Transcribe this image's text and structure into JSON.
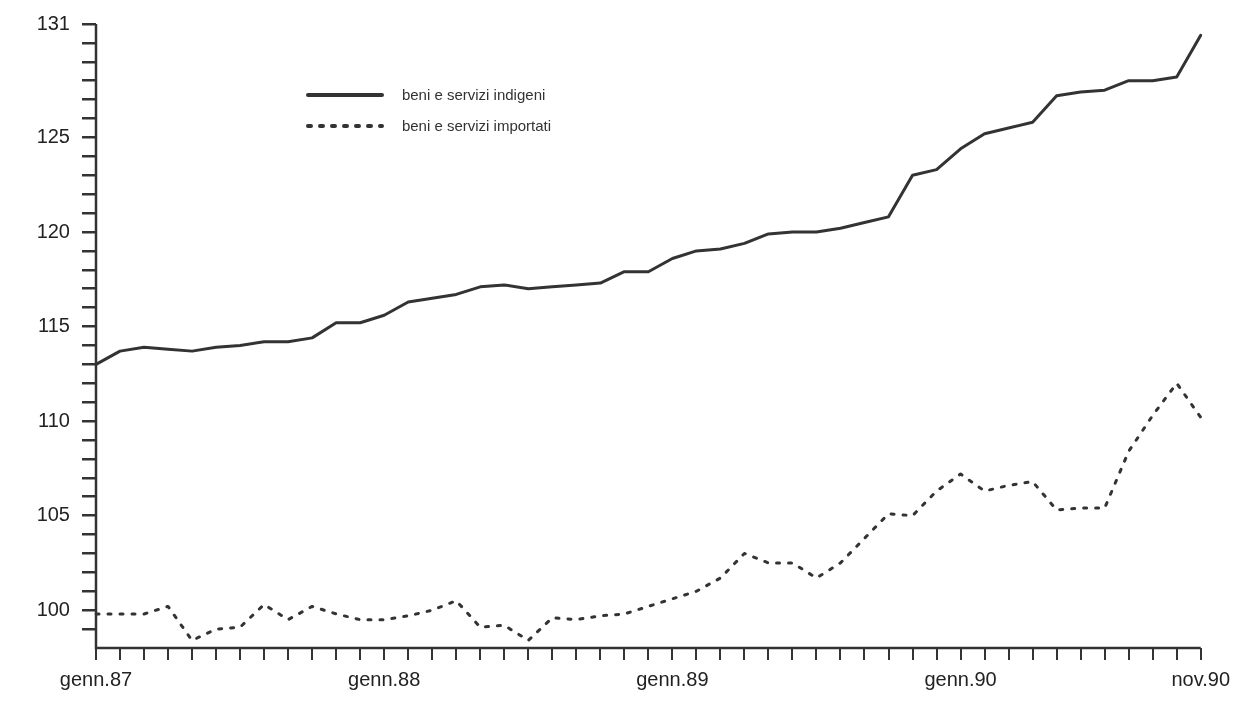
{
  "chart_data": {
    "type": "line",
    "categories": [
      "genn.87",
      null,
      null,
      null,
      null,
      null,
      null,
      null,
      null,
      null,
      null,
      null,
      "genn.88",
      null,
      null,
      null,
      null,
      null,
      null,
      null,
      null,
      null,
      null,
      null,
      "genn.89",
      null,
      null,
      null,
      null,
      null,
      null,
      null,
      null,
      null,
      null,
      null,
      "genn.90",
      null,
      null,
      null,
      null,
      null,
      null,
      null,
      null,
      null,
      "nov.90"
    ],
    "series": [
      {
        "name": "beni e servizi indigeni",
        "color": "#333333",
        "line_style": "solid",
        "values": [
          113.0,
          113.7,
          113.9,
          113.8,
          113.7,
          113.9,
          114.0,
          114.2,
          114.2,
          114.4,
          115.2,
          115.2,
          115.6,
          116.3,
          116.5,
          116.7,
          117.1,
          117.2,
          117.0,
          117.1,
          117.2,
          117.3,
          117.9,
          117.9,
          118.6,
          119.0,
          119.1,
          119.4,
          119.9,
          120.0,
          120.0,
          120.2,
          120.5,
          120.8,
          123.0,
          123.3,
          124.4,
          125.2,
          125.5,
          125.8,
          127.2,
          127.4,
          127.5,
          128.0,
          128.0,
          128.2,
          130.4
        ]
      },
      {
        "name": "beni e servizi importati",
        "color": "#333333",
        "line_style": "dotted",
        "values": [
          99.8,
          99.8,
          99.8,
          100.2,
          98.4,
          99.0,
          99.1,
          100.3,
          99.5,
          100.2,
          99.8,
          99.5,
          99.5,
          99.7,
          100.0,
          100.5,
          99.1,
          99.2,
          98.4,
          99.6,
          99.5,
          99.7,
          99.8,
          100.2,
          100.6,
          101.0,
          101.7,
          103.0,
          102.5,
          102.5,
          101.7,
          102.5,
          103.8,
          105.1,
          105.0,
          106.3,
          107.2,
          106.3,
          106.6,
          106.8,
          105.3,
          105.4,
          105.4,
          108.4,
          110.3,
          112.0,
          110.2
        ]
      }
    ],
    "ylim": [
      98,
      131
    ],
    "yticks": [
      {
        "value": 99,
        "label": null
      },
      100,
      {
        "value": 101,
        "label": null
      },
      {
        "value": 102,
        "label": null
      },
      {
        "value": 103,
        "label": null
      },
      {
        "value": 104,
        "label": null
      },
      105,
      {
        "value": 106,
        "label": null
      },
      {
        "value": 107,
        "label": null
      },
      {
        "value": 108,
        "label": null
      },
      {
        "value": 109,
        "label": null
      },
      110,
      {
        "value": 111,
        "label": null
      },
      {
        "value": 112,
        "label": null
      },
      {
        "value": 113,
        "label": null
      },
      {
        "value": 114,
        "label": null
      },
      115,
      {
        "value": 116,
        "label": null
      },
      {
        "value": 117,
        "label": null
      },
      {
        "value": 118,
        "label": null
      },
      {
        "value": 119,
        "label": null
      },
      120,
      {
        "value": 121,
        "label": null
      },
      {
        "value": 122,
        "label": null
      },
      {
        "value": 123,
        "label": null
      },
      {
        "value": 124,
        "label": null
      },
      125,
      {
        "value": 126,
        "label": null
      },
      {
        "value": 127,
        "label": null
      },
      {
        "value": 128,
        "label": null
      },
      {
        "value": 129,
        "label": null
      },
      {
        "value": 130,
        "label": null
      },
      131
    ],
    "legend": "top left",
    "grid": false,
    "marker": "none"
  }
}
